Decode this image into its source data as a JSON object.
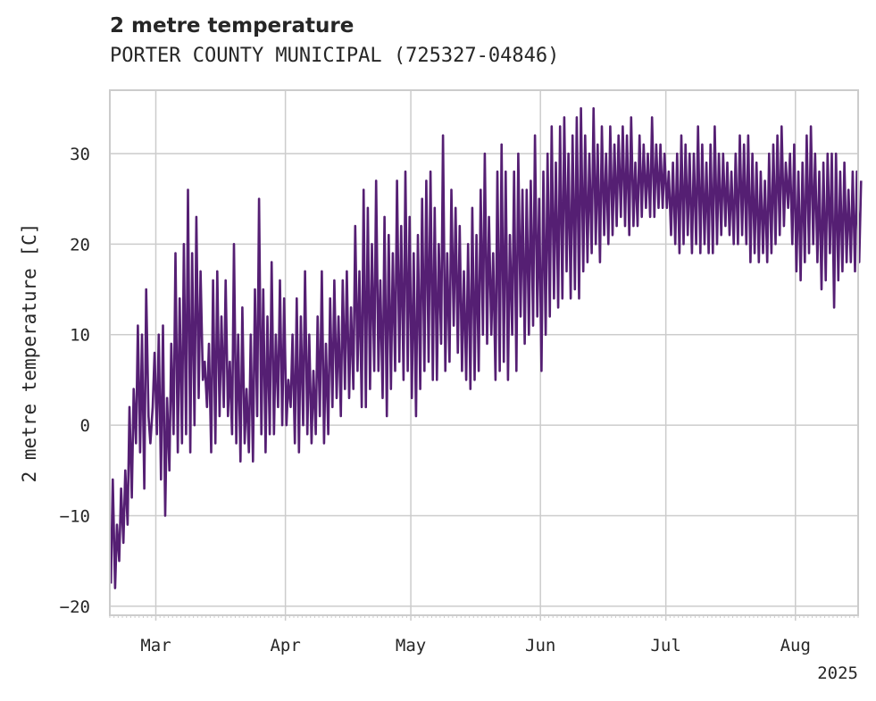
{
  "chart_data": {
    "type": "line",
    "title": "2 metre temperature",
    "subtitle": "PORTER COUNTY MUNICIPAL (725327-04846)",
    "ylabel": "2 metre temperature [C]",
    "xlabel": "",
    "x_range": [
      "2025-02-18",
      "2025-08-16"
    ],
    "ylim": [
      -21,
      37
    ],
    "yticks": [
      -20,
      -10,
      0,
      10,
      20,
      30
    ],
    "xticks": [
      {
        "date": "2025-03-01",
        "label": "Mar"
      },
      {
        "date": "2025-04-01",
        "label": "Apr"
      },
      {
        "date": "2025-05-01",
        "label": "May"
      },
      {
        "date": "2025-06-01",
        "label": "Jun"
      },
      {
        "date": "2025-07-01",
        "label": "Jul"
      },
      {
        "date": "2025-08-01",
        "label": "Aug"
      }
    ],
    "year_label": "2025",
    "grid": true,
    "line_color": "#551f73",
    "series": [
      {
        "x": [
          "2025-02-18",
          "2025-02-19",
          "2025-02-20",
          "2025-02-21",
          "2025-02-22",
          "2025-02-23",
          "2025-02-24",
          "2025-02-25",
          "2025-02-26",
          "2025-02-27",
          "2025-02-28",
          "2025-03-01",
          "2025-03-02",
          "2025-03-03",
          "2025-03-04",
          "2025-03-05",
          "2025-03-06",
          "2025-03-07",
          "2025-03-08",
          "2025-03-09",
          "2025-03-10",
          "2025-03-11",
          "2025-03-12",
          "2025-03-13",
          "2025-03-14",
          "2025-03-15",
          "2025-03-16",
          "2025-03-17",
          "2025-03-18",
          "2025-03-19",
          "2025-03-20",
          "2025-03-21",
          "2025-03-22",
          "2025-03-23",
          "2025-03-24",
          "2025-03-25",
          "2025-03-26",
          "2025-03-27",
          "2025-03-28",
          "2025-03-29",
          "2025-03-30",
          "2025-03-31",
          "2025-04-01",
          "2025-04-02",
          "2025-04-03",
          "2025-04-04",
          "2025-04-05",
          "2025-04-06",
          "2025-04-07",
          "2025-04-08",
          "2025-04-09",
          "2025-04-10",
          "2025-04-11",
          "2025-04-12",
          "2025-04-13",
          "2025-04-14",
          "2025-04-15",
          "2025-04-16",
          "2025-04-17",
          "2025-04-18",
          "2025-04-19",
          "2025-04-20",
          "2025-04-21",
          "2025-04-22",
          "2025-04-23",
          "2025-04-24",
          "2025-04-25",
          "2025-04-26",
          "2025-04-27",
          "2025-04-28",
          "2025-04-29",
          "2025-04-30",
          "2025-05-01",
          "2025-05-02",
          "2025-05-03",
          "2025-05-04",
          "2025-05-05",
          "2025-05-06",
          "2025-05-07",
          "2025-05-08",
          "2025-05-09",
          "2025-05-10",
          "2025-05-11",
          "2025-05-12",
          "2025-05-13",
          "2025-05-14",
          "2025-05-15",
          "2025-05-16",
          "2025-05-17",
          "2025-05-18",
          "2025-05-19",
          "2025-05-20",
          "2025-05-21",
          "2025-05-22",
          "2025-05-23",
          "2025-05-24",
          "2025-05-25",
          "2025-05-26",
          "2025-05-27",
          "2025-05-28",
          "2025-05-29",
          "2025-05-30",
          "2025-05-31",
          "2025-06-01",
          "2025-06-02",
          "2025-06-03",
          "2025-06-04",
          "2025-06-05",
          "2025-06-06",
          "2025-06-07",
          "2025-06-08",
          "2025-06-09",
          "2025-06-10",
          "2025-06-11",
          "2025-06-12",
          "2025-06-13",
          "2025-06-14",
          "2025-06-15",
          "2025-06-16",
          "2025-06-17",
          "2025-06-18",
          "2025-06-19",
          "2025-06-20",
          "2025-06-21",
          "2025-06-22",
          "2025-06-23",
          "2025-06-24",
          "2025-06-25",
          "2025-06-26",
          "2025-06-27",
          "2025-06-28",
          "2025-06-29",
          "2025-06-30",
          "2025-07-01",
          "2025-07-02",
          "2025-07-03",
          "2025-07-04",
          "2025-07-05",
          "2025-07-06",
          "2025-07-07",
          "2025-07-08",
          "2025-07-09",
          "2025-07-10",
          "2025-07-11",
          "2025-07-12",
          "2025-07-13",
          "2025-07-14",
          "2025-07-15",
          "2025-07-16",
          "2025-07-17",
          "2025-07-18",
          "2025-07-19",
          "2025-07-20",
          "2025-07-21",
          "2025-07-22",
          "2025-07-23",
          "2025-07-24",
          "2025-07-25",
          "2025-07-26",
          "2025-07-27",
          "2025-07-28",
          "2025-07-29",
          "2025-07-30",
          "2025-07-31",
          "2025-08-01",
          "2025-08-02",
          "2025-08-03",
          "2025-08-04",
          "2025-08-05",
          "2025-08-06",
          "2025-08-07",
          "2025-08-08",
          "2025-08-09",
          "2025-08-10",
          "2025-08-11",
          "2025-08-12",
          "2025-08-13",
          "2025-08-14",
          "2025-08-15",
          "2025-08-16"
        ],
        "min": [
          -17.5,
          -18,
          -15,
          -13,
          -11,
          -8,
          -2,
          -3,
          -7,
          1,
          2,
          -1,
          -6,
          -10,
          -5,
          -1,
          -3,
          -2,
          -1,
          -3,
          0,
          3,
          5,
          2,
          -3,
          -2,
          1,
          2,
          1,
          -1,
          -2,
          -4,
          -2,
          -3,
          -4,
          1,
          -1,
          -3,
          -1,
          -1,
          2,
          0,
          0,
          2,
          -2,
          -3,
          0,
          -1,
          -2,
          -1,
          1,
          -2,
          -1,
          2,
          3,
          1,
          4,
          3,
          4,
          6,
          2,
          2,
          4,
          6,
          6,
          3,
          1,
          4,
          6,
          7,
          5,
          6,
          3,
          1,
          4,
          6,
          7,
          5,
          5,
          9,
          6,
          7,
          11,
          8,
          6,
          5,
          4,
          5,
          6,
          10,
          9,
          10,
          5,
          6,
          7,
          5,
          10,
          6,
          12,
          9,
          10,
          11,
          12,
          6,
          10,
          12,
          14,
          13,
          14,
          17,
          14,
          15,
          14,
          17,
          18,
          19,
          20,
          18,
          21,
          20,
          21,
          22,
          23,
          22,
          21,
          22,
          22,
          23,
          24,
          23,
          23,
          24,
          24,
          24,
          21,
          20,
          19,
          20,
          21,
          19,
          20,
          19,
          20,
          19,
          19,
          20,
          21,
          22,
          21,
          20,
          20,
          21,
          20,
          18,
          19,
          18,
          19,
          18,
          19,
          20,
          21,
          22,
          24,
          20,
          17,
          16,
          18,
          19,
          20,
          18,
          15,
          16,
          19,
          13,
          16,
          17,
          18,
          18,
          17,
          18,
          17,
          19,
          17,
          18
        ],
        "max": [
          -6,
          -11,
          -7,
          -5,
          2,
          4,
          11,
          10,
          15,
          -2,
          8,
          10,
          11,
          3,
          9,
          19,
          14,
          20,
          26,
          19,
          23,
          17,
          7,
          9,
          16,
          17,
          12,
          16,
          7,
          20,
          10,
          13,
          4,
          10,
          15,
          25,
          15,
          12,
          18,
          10,
          16,
          14,
          5,
          10,
          14,
          12,
          17,
          10,
          6,
          12,
          17,
          9,
          14,
          16,
          12,
          16,
          17,
          13,
          22,
          17,
          26,
          24,
          20,
          27,
          16,
          23,
          21,
          19,
          27,
          22,
          28,
          23,
          19,
          21,
          25,
          27,
          28,
          24,
          20,
          32,
          19,
          26,
          24,
          22,
          17,
          20,
          24,
          21,
          26,
          30,
          23,
          19,
          28,
          31,
          28,
          21,
          28,
          30,
          26,
          26,
          27,
          32,
          25,
          28,
          30,
          33,
          29,
          33,
          34,
          30,
          32,
          34,
          35,
          32,
          30,
          35,
          31,
          33,
          30,
          33,
          31,
          32,
          33,
          32,
          34,
          29,
          32,
          31,
          30,
          34,
          31,
          31,
          30,
          28,
          29,
          30,
          32,
          31,
          30,
          30,
          33,
          31,
          29,
          31,
          33,
          30,
          30,
          29,
          28,
          30,
          32,
          31,
          32,
          30,
          29,
          28,
          27,
          30,
          31,
          32,
          33,
          29,
          30,
          31,
          28,
          29,
          32,
          33,
          30,
          28,
          29,
          30,
          30,
          30,
          28,
          29,
          26,
          28,
          28,
          27,
          30
        ]
      }
    ]
  }
}
